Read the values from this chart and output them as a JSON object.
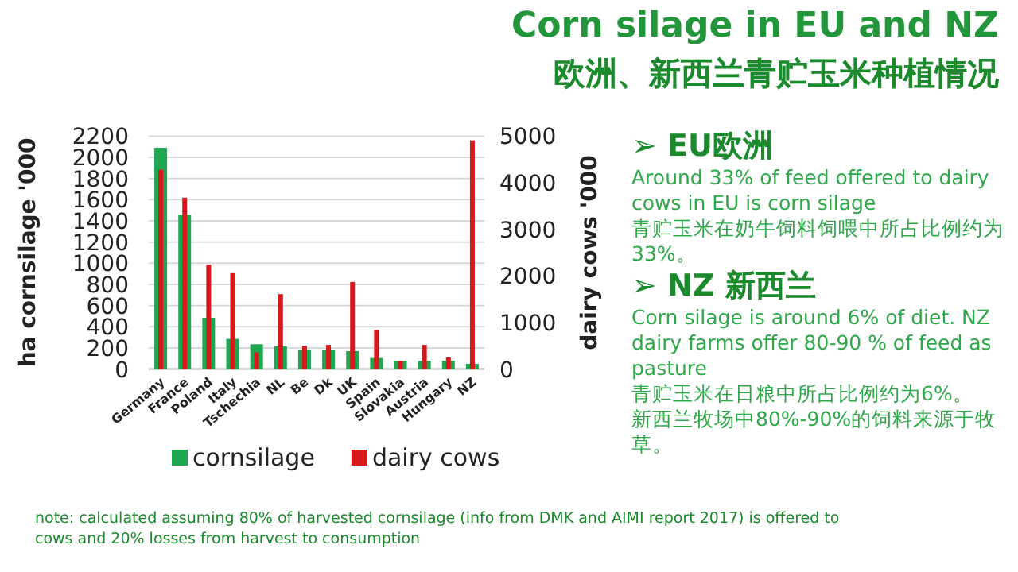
{
  "chart_data": {
    "type": "bar",
    "title": "Corn silage in EU and NZ",
    "subtitle": "欧洲、新西兰青贮玉米种植情况",
    "ylabel": "ha cornsilage '000",
    "y2label": "dairy cows '000",
    "categories": [
      "Germany",
      "France",
      "Poland",
      "Italy",
      "Tschechia",
      "NL",
      "Be",
      "Dk",
      "UK",
      "Spain",
      "Slovakia",
      "Austria",
      "Hungary",
      "NZ"
    ],
    "series": [
      {
        "name": "cornsilage",
        "color": "#1fa650",
        "values": [
          2090,
          1460,
          485,
          285,
          235,
          215,
          185,
          185,
          170,
          105,
          80,
          80,
          80,
          50
        ]
      },
      {
        "name": "dairy cows",
        "color": "#d7191c",
        "axis": "y2",
        "values": [
          4280,
          3680,
          2240,
          2060,
          360,
          1610,
          500,
          520,
          1870,
          840,
          180,
          520,
          250,
          4910
        ]
      }
    ],
    "ylim": [
      0,
      2200
    ],
    "yticks": [
      0,
      200,
      400,
      600,
      800,
      1000,
      1200,
      1400,
      1600,
      1800,
      2000,
      2200
    ],
    "y2lim": [
      0,
      5000
    ],
    "y2ticks": [
      0,
      1000,
      2000,
      3000,
      4000,
      5000
    ],
    "grid": "y",
    "legend": "bottom",
    "annotations": [
      "➢ EU欧洲",
      "Around 33% of feed offered to dairy cows in EU is corn silage",
      "青贮玉米在奶牛饲料饲喂中所占比例约为33%。",
      "➢ NZ 新西兰",
      "Corn silage is around 6% of diet. NZ dairy farms offer 80-90 % of feed as pasture",
      "青贮玉米在日粮中所占比例约为6%。",
      "新西兰牧场中80%-90%的饲料来源于牧草。",
      "note: calculated assuming 80% of harvested cornsilage (info from DMK and AIMI report 2017) is offered to cows and 20% losses from harvest to consumption"
    ]
  }
}
